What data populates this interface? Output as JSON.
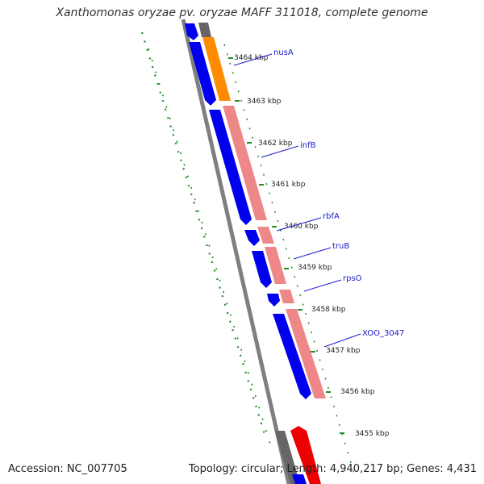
{
  "title": "Xanthomonas oryzae pv. oryzae MAFF 311018, complete genome",
  "footer": {
    "accession": "Accession: NC_007705",
    "stats": "Topology: circular; Length: 4,940,217 bp; Genes: 4,431"
  },
  "colors": {
    "backbone": "#7f7f7f",
    "forward_cds": "#0000ee",
    "reverse_cds": "#ee8888",
    "orange_feature": "#ff8c00",
    "grey_feature": "#666666",
    "red_feature": "#ee0000",
    "gc_dots": "#228b22",
    "label_line": "#1a1acc"
  },
  "ticks": [
    "3464 kbp",
    "3463 kbp",
    "3462 kbp",
    "3461 kbp",
    "3460 kbp",
    "3459 kbp",
    "3458 kbp",
    "3457 kbp",
    "3456 kbp",
    "3455 kbp"
  ],
  "gene_labels": [
    "nusA",
    "infB",
    "rbfA",
    "truB",
    "rpsO",
    "XOO_3047"
  ]
}
